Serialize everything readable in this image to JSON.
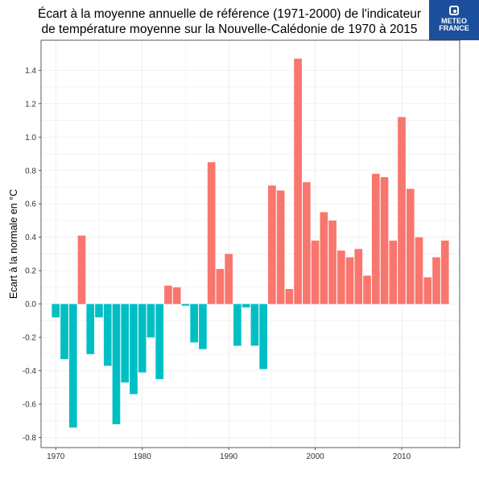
{
  "header": {
    "title_line1": "Écart à la moyenne annuelle de référence (1971-2000) de l'indicateur",
    "title_line2": "de température moyenne sur la Nouvelle-Calédonie de 1970 à 2015",
    "logo_line1": "METEO",
    "logo_line2": "FRANCE"
  },
  "colors": {
    "positive": "#f8766d",
    "negative": "#00bfc4",
    "grid": "#ebebeb",
    "frame": "#333333"
  },
  "chart_data": {
    "type": "bar",
    "title": "Écart à la moyenne annuelle de référence (1971-2000) de l'indicateur de température moyenne sur la Nouvelle-Calédonie de 1970 à 2015",
    "xlabel": "",
    "ylabel": "Ecart à la normale en °C",
    "x": [
      1970,
      1971,
      1972,
      1973,
      1974,
      1975,
      1976,
      1977,
      1978,
      1979,
      1980,
      1981,
      1982,
      1983,
      1984,
      1985,
      1986,
      1987,
      1988,
      1989,
      1990,
      1991,
      1992,
      1993,
      1994,
      1995,
      1996,
      1997,
      1998,
      1999,
      2000,
      2001,
      2002,
      2003,
      2004,
      2005,
      2006,
      2007,
      2008,
      2009,
      2010,
      2011,
      2012,
      2013,
      2014,
      2015
    ],
    "values": [
      -0.08,
      -0.33,
      -0.74,
      0.41,
      -0.3,
      -0.08,
      -0.37,
      -0.72,
      -0.47,
      -0.54,
      -0.41,
      -0.2,
      -0.45,
      0.11,
      0.1,
      -0.01,
      -0.23,
      -0.27,
      0.85,
      0.21,
      0.3,
      -0.25,
      -0.02,
      -0.25,
      -0.39,
      0.71,
      0.68,
      0.09,
      1.47,
      0.73,
      0.38,
      0.55,
      0.5,
      0.32,
      0.28,
      0.33,
      0.17,
      0.78,
      0.76,
      0.38,
      1.12,
      0.69,
      0.4,
      0.16,
      0.28,
      0.38
    ],
    "xlim": [
      1968.3,
      1016.7
    ],
    "ylim": [
      -0.86,
      1.58
    ],
    "xticks": [
      1970,
      1980,
      1990,
      2000,
      2010
    ],
    "yticks": [
      -0.8,
      -0.6,
      -0.4,
      -0.2,
      0.0,
      0.2,
      0.4,
      0.6,
      0.8,
      1.0,
      1.2,
      1.4
    ],
    "ytick_labels": [
      "-0.8",
      "-0.6",
      "-0.4",
      "-0.2",
      "0.0",
      "0.2",
      "0.4",
      "0.6",
      "0.8",
      "1.0",
      "1.2",
      "1.4"
    ],
    "grid": true,
    "legend": "none"
  }
}
